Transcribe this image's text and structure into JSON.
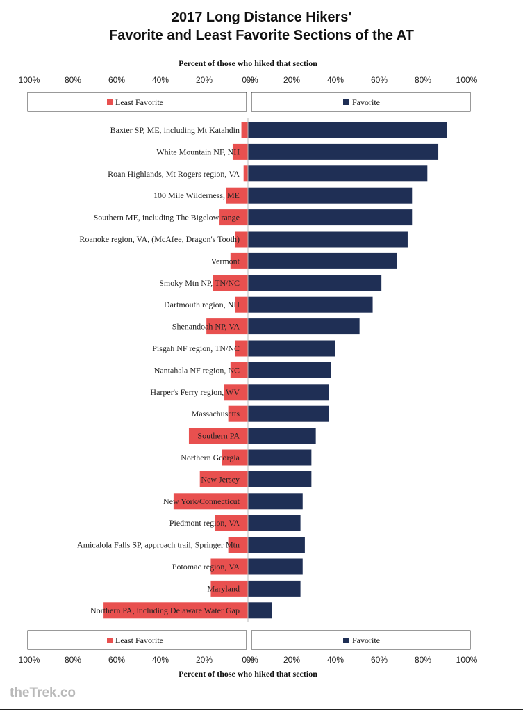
{
  "title_line1": "2017 Long Distance Hikers'",
  "title_line2": "Favorite and Least Favorite Sections of the AT",
  "brand": "theTrek.co",
  "chart_data": {
    "type": "bar",
    "orientation": "horizontal-diverging",
    "title": "2017 Long Distance Hikers' Favorite and Least Favorite Sections of the AT",
    "xlabel": "Percent of those who hiked that section",
    "x_ticks_left": [
      "100%",
      "80%",
      "60%",
      "40%",
      "20%",
      "0%"
    ],
    "x_ticks_right": [
      "0%",
      "20%",
      "40%",
      "60%",
      "80%",
      "100%"
    ],
    "xlim": [
      -100,
      100
    ],
    "legend": {
      "placement": "top-and-bottom",
      "least": "Least Favorite",
      "favorite": "Favorite"
    },
    "colors": {
      "least": "#e8504f",
      "favorite": "#1f2f55"
    },
    "categories": [
      "Baxter SP, ME, including Mt Katahdin",
      "White Mountain NF, NH",
      "Roan   Highlands, Mt Rogers region, VA",
      "100 Mile Wilderness, ME",
      "Southern ME, including The Bigelow range",
      "Roanoke region, VA, (McAfee, Dragon's Tooth)",
      "Vermont",
      "Smoky Mtn NP, TN/NC",
      "Dartmouth region, NH",
      "Shenandoah NP, VA",
      "Pisgah NF region, TN/NC",
      "Nantahala NF region, NC",
      "Harper's Ferry region, WV",
      "Massachusetts",
      "Southern PA",
      "Northern Georgia",
      "New Jersey",
      "New York/Connecticut",
      "Piedmont region, VA",
      "Amicalola Falls SP, approach trail, Springer Mtn",
      "Potomac region, VA",
      "Maryland",
      "Northern PA, including Delaware Water Gap"
    ],
    "series": [
      {
        "name": "Least Favorite",
        "values": [
          3,
          7,
          2,
          10,
          13,
          6,
          8,
          16,
          6,
          19,
          6,
          8,
          11,
          9,
          27,
          12,
          22,
          34,
          15,
          9,
          17,
          17,
          66
        ]
      },
      {
        "name": "Favorite",
        "values": [
          91,
          87,
          82,
          75,
          75,
          73,
          68,
          61,
          57,
          51,
          40,
          38,
          37,
          37,
          31,
          29,
          29,
          25,
          24,
          26,
          25,
          24,
          11
        ]
      }
    ]
  }
}
